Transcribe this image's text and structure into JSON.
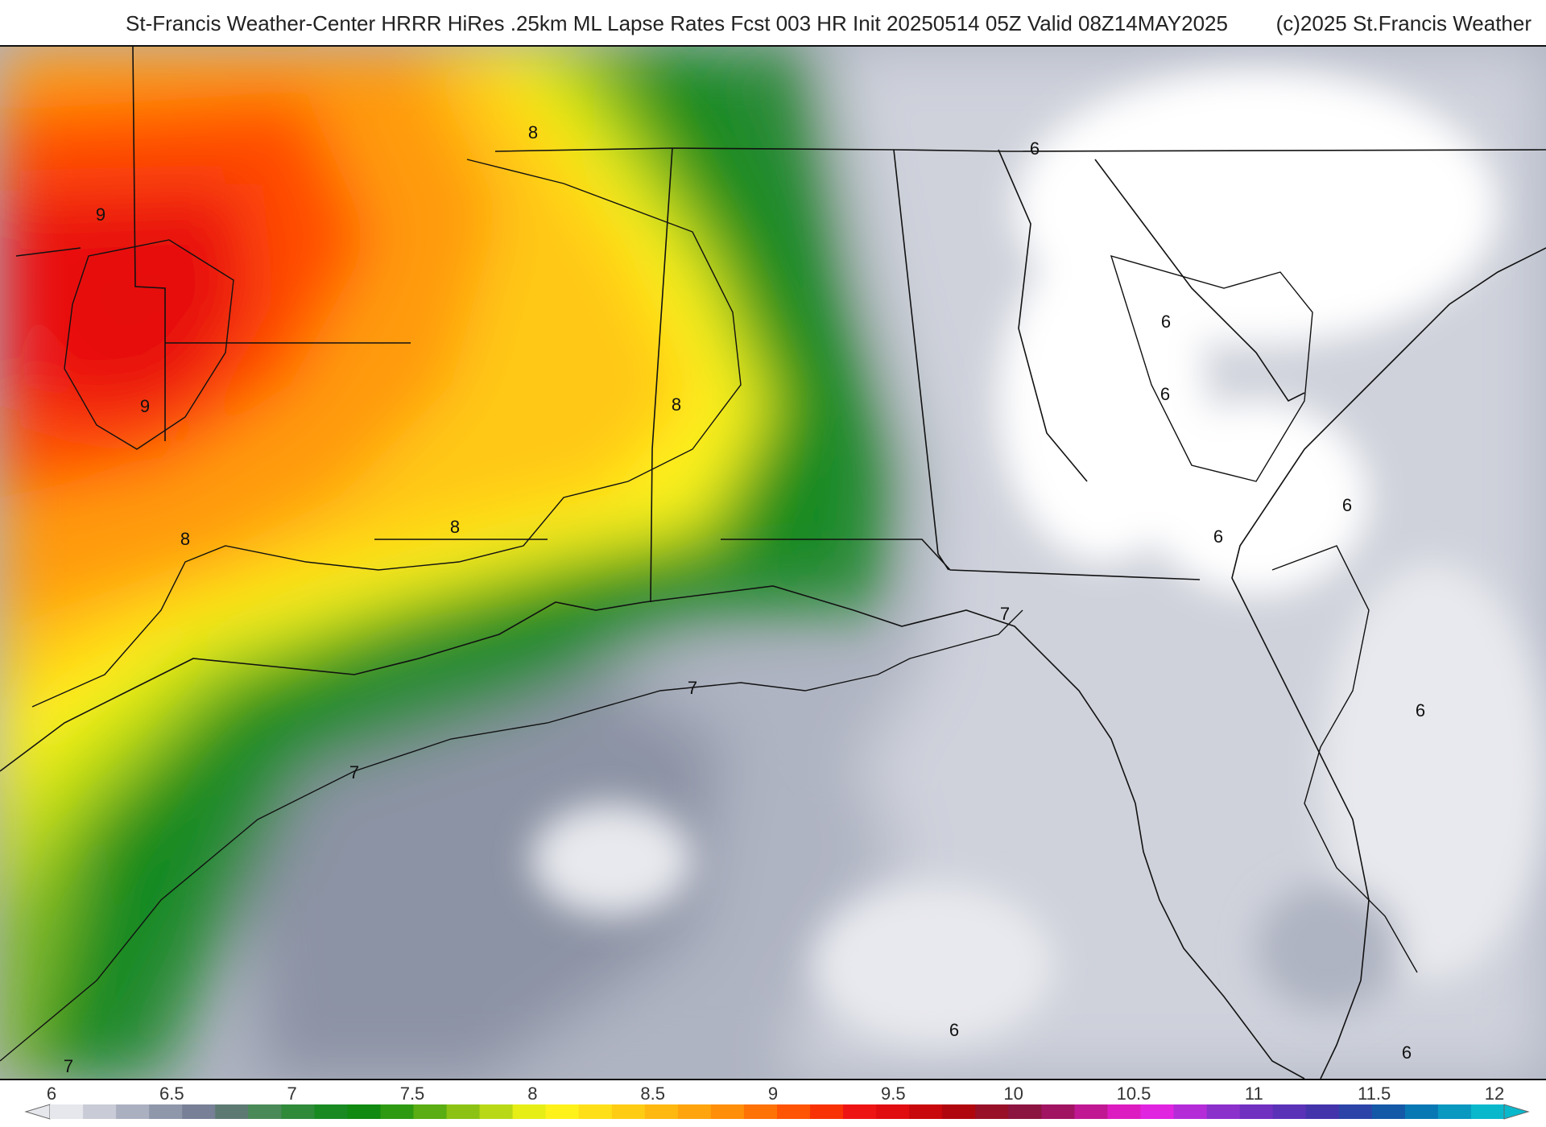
{
  "header": {
    "title": "St-Francis Weather-Center HRRR HiRes .25km ML Lapse Rates  Fcst 003 HR Init 20250514 05Z  Valid 08Z14MAY2025",
    "credit": "(c)2025 St.Francis Weather"
  },
  "colorbar": {
    "ticks": [
      "6",
      "6.5",
      "7",
      "7.5",
      "8",
      "8.5",
      "9",
      "9.5",
      "10",
      "10.5",
      "11",
      "11.5",
      "12"
    ],
    "colors": [
      "#e6e7ec",
      "#c9ccd6",
      "#aab0c0",
      "#8f97aa",
      "#778096",
      "#5d7a72",
      "#4a8a58",
      "#2f8a3a",
      "#198a22",
      "#108a10",
      "#2e9a12",
      "#5aad12",
      "#8cc214",
      "#b9d816",
      "#e6ee16",
      "#fff21a",
      "#ffe018",
      "#ffcc14",
      "#ffb810",
      "#ffa40c",
      "#ff8e08",
      "#ff7206",
      "#ff5404",
      "#f83204",
      "#ee1414",
      "#e00c10",
      "#c8080c",
      "#b0060e",
      "#981028",
      "#8c1440",
      "#a01462",
      "#c01892",
      "#dc1cc0",
      "#e024e0",
      "#b42cd8",
      "#8c30cc",
      "#7030c0",
      "#5a32b8",
      "#4434ac",
      "#2c44a8",
      "#1458a8",
      "#0878b4",
      "#0898c0",
      "#0ab8cc"
    ]
  },
  "map": {
    "colors": {
      "v6": "#ffffff",
      "v6_2": "#e8e9ee",
      "v6_4": "#cfd2db",
      "v6_6": "#afb4c2",
      "v6_8": "#8c93a4",
      "v7": "#2e8b3a",
      "v7_2": "#0f8a1a",
      "v7_5": "#7ab81a",
      "v7_8": "#c6e018",
      "v8": "#fff21a",
      "v8_3": "#ffc814",
      "v8_6": "#ff9a0c",
      "v9": "#ff4c04",
      "v9_3": "#ee1414",
      "v9_6": "#e60a10"
    },
    "contour_labels": [
      "9",
      "9",
      "8",
      "8",
      "8",
      "8",
      "7",
      "7",
      "7",
      "7",
      "6",
      "6",
      "6",
      "6",
      "6",
      "6",
      "6",
      "6"
    ]
  }
}
